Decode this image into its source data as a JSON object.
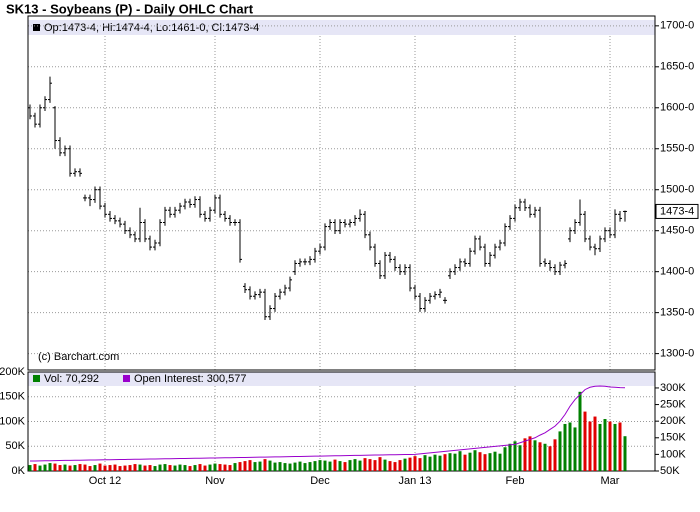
{
  "chart_data": [
    {
      "type": "ohlc",
      "title": "SK13 - Soybeans (P) - Daily OHLC Chart",
      "legend": "Op:1473-4, Hi:1474-4, Lo:1461-0, Cl:1473-4",
      "credit": "(c) Barchart.com",
      "color": "#000000",
      "categories": [
        null,
        null,
        null,
        null,
        null,
        null,
        null,
        null,
        null,
        null,
        null,
        null,
        null,
        null,
        null,
        "Oct 12",
        null,
        null,
        null,
        null,
        null,
        null,
        null,
        null,
        null,
        null,
        null,
        null,
        null,
        null,
        null,
        null,
        null,
        null,
        null,
        null,
        null,
        "Nov",
        null,
        null,
        null,
        null,
        null,
        null,
        null,
        null,
        null,
        null,
        null,
        null,
        null,
        null,
        null,
        null,
        null,
        null,
        null,
        null,
        "Dec",
        null,
        null,
        null,
        null,
        null,
        null,
        null,
        null,
        null,
        null,
        null,
        null,
        null,
        null,
        null,
        null,
        null,
        null,
        "Jan 13",
        null,
        null,
        null,
        null,
        null,
        null,
        null,
        null,
        null,
        null,
        null,
        null,
        null,
        null,
        null,
        null,
        null,
        null,
        null,
        "Feb",
        null,
        null,
        null,
        null,
        null,
        null,
        null,
        null,
        null,
        null,
        null,
        null,
        null,
        null,
        null,
        null,
        null,
        null,
        "Mar",
        null,
        null,
        null
      ],
      "ohlc": [
        [
          1600,
          1604,
          1586,
          1590
        ],
        [
          1590,
          1594,
          1576,
          1580
        ],
        [
          1580,
          1604,
          1576,
          1600
        ],
        [
          1600,
          1614,
          1596,
          1610
        ],
        [
          1610,
          1638,
          1606,
          1630
        ],
        [
          1600,
          1602,
          1550,
          1560
        ],
        [
          1560,
          1564,
          1541,
          1545
        ],
        [
          1545,
          1554,
          1541,
          1550
        ],
        [
          1550,
          1554,
          1516,
          1520
        ],
        [
          1520,
          1526,
          1516,
          1522
        ],
        [
          1522,
          1526,
          1516,
          1520
        ],
        [
          1490,
          1494,
          1486,
          1490
        ],
        [
          1490,
          1494,
          1480,
          1488
        ],
        [
          1488,
          1504,
          1484,
          1500
        ],
        [
          1500,
          1504,
          1476,
          1480
        ],
        [
          1480,
          1484,
          1466,
          1470
        ],
        [
          1470,
          1474,
          1461,
          1465
        ],
        [
          1465,
          1469,
          1458,
          1462
        ],
        [
          1462,
          1466,
          1454,
          1458
        ],
        [
          1458,
          1462,
          1446,
          1450
        ],
        [
          1450,
          1454,
          1441,
          1445
        ],
        [
          1445,
          1449,
          1436,
          1440
        ],
        [
          1440,
          1478,
          1436,
          1460
        ],
        [
          1460,
          1464,
          1436,
          1440
        ],
        [
          1440,
          1444,
          1426,
          1430
        ],
        [
          1430,
          1439,
          1426,
          1435
        ],
        [
          1435,
          1464,
          1431,
          1460
        ],
        [
          1460,
          1479,
          1456,
          1475
        ],
        [
          1475,
          1479,
          1466,
          1470
        ],
        [
          1470,
          1479,
          1466,
          1475
        ],
        [
          1475,
          1484,
          1471,
          1480
        ],
        [
          1480,
          1489,
          1476,
          1485
        ],
        [
          1485,
          1489,
          1478,
          1482
        ],
        [
          1482,
          1492,
          1478,
          1488
        ],
        [
          1488,
          1492,
          1466,
          1470
        ],
        [
          1470,
          1474,
          1461,
          1465
        ],
        [
          1465,
          1479,
          1461,
          1475
        ],
        [
          1475,
          1494,
          1471,
          1490
        ],
        [
          1490,
          1494,
          1466,
          1470
        ],
        [
          1470,
          1474,
          1461,
          1465
        ],
        [
          1465,
          1469,
          1456,
          1460
        ],
        [
          1460,
          1464,
          1456,
          1460
        ],
        [
          1460,
          1464,
          1411,
          1415
        ],
        [
          1382,
          1386,
          1374,
          1378
        ],
        [
          1378,
          1382,
          1366,
          1370
        ],
        [
          1370,
          1376,
          1366,
          1372
        ],
        [
          1372,
          1379,
          1368,
          1375
        ],
        [
          1375,
          1379,
          1341,
          1345
        ],
        [
          1345,
          1359,
          1341,
          1355
        ],
        [
          1355,
          1374,
          1351,
          1370
        ],
        [
          1370,
          1379,
          1366,
          1375
        ],
        [
          1375,
          1384,
          1371,
          1380
        ],
        [
          1380,
          1394,
          1376,
          1390
        ],
        [
          1400,
          1414,
          1396,
          1410
        ],
        [
          1410,
          1416,
          1406,
          1412
        ],
        [
          1412,
          1416,
          1408,
          1412
        ],
        [
          1412,
          1419,
          1408,
          1415
        ],
        [
          1415,
          1429,
          1411,
          1425
        ],
        [
          1425,
          1434,
          1421,
          1430
        ],
        [
          1430,
          1459,
          1426,
          1455
        ],
        [
          1455,
          1464,
          1451,
          1460
        ],
        [
          1460,
          1464,
          1446,
          1450
        ],
        [
          1450,
          1464,
          1446,
          1460
        ],
        [
          1460,
          1464,
          1454,
          1458
        ],
        [
          1458,
          1464,
          1454,
          1460
        ],
        [
          1460,
          1469,
          1456,
          1465
        ],
        [
          1465,
          1476,
          1461,
          1470
        ],
        [
          1470,
          1474,
          1441,
          1445
        ],
        [
          1445,
          1449,
          1426,
          1430
        ],
        [
          1430,
          1434,
          1406,
          1410
        ],
        [
          1410,
          1414,
          1391,
          1395
        ],
        [
          1395,
          1424,
          1391,
          1420
        ],
        [
          1420,
          1424,
          1411,
          1415
        ],
        [
          1415,
          1419,
          1401,
          1405
        ],
        [
          1405,
          1409,
          1396,
          1400
        ],
        [
          1400,
          1409,
          1396,
          1405
        ],
        [
          1405,
          1409,
          1376,
          1380
        ],
        [
          1380,
          1384,
          1366,
          1370
        ],
        [
          1370,
          1374,
          1351,
          1355
        ],
        [
          1355,
          1369,
          1351,
          1365
        ],
        [
          1365,
          1374,
          1361,
          1370
        ],
        [
          1370,
          1376,
          1366,
          1372
        ],
        [
          1372,
          1379,
          1368,
          1375
        ],
        [
          1365,
          1369,
          1361,
          1365
        ],
        [
          1395,
          1404,
          1391,
          1400
        ],
        [
          1400,
          1409,
          1396,
          1405
        ],
        [
          1405,
          1416,
          1401,
          1412
        ],
        [
          1412,
          1416,
          1406,
          1410
        ],
        [
          1410,
          1429,
          1406,
          1425
        ],
        [
          1425,
          1444,
          1421,
          1440
        ],
        [
          1440,
          1444,
          1426,
          1430
        ],
        [
          1430,
          1434,
          1406,
          1410
        ],
        [
          1410,
          1424,
          1406,
          1420
        ],
        [
          1420,
          1434,
          1416,
          1430
        ],
        [
          1430,
          1439,
          1426,
          1435
        ],
        [
          1435,
          1459,
          1431,
          1455
        ],
        [
          1455,
          1469,
          1451,
          1465
        ],
        [
          1465,
          1482,
          1461,
          1478
        ],
        [
          1478,
          1489,
          1474,
          1485
        ],
        [
          1485,
          1489,
          1474,
          1478
        ],
        [
          1478,
          1482,
          1466,
          1470
        ],
        [
          1470,
          1479,
          1466,
          1475
        ],
        [
          1475,
          1479,
          1406,
          1410
        ],
        [
          1412,
          1416,
          1406,
          1410
        ],
        [
          1410,
          1414,
          1401,
          1405
        ],
        [
          1405,
          1409,
          1396,
          1400
        ],
        [
          1400,
          1412,
          1396,
          1408
        ],
        [
          1408,
          1414,
          1404,
          1410
        ],
        [
          1440,
          1454,
          1436,
          1450
        ],
        [
          1450,
          1464,
          1446,
          1460
        ],
        [
          1460,
          1488,
          1456,
          1470
        ],
        [
          1470,
          1474,
          1436,
          1440
        ],
        [
          1440,
          1444,
          1426,
          1430
        ],
        [
          1430,
          1434,
          1420,
          1428
        ],
        [
          1428,
          1444,
          1424,
          1440
        ],
        [
          1440,
          1454,
          1436,
          1450
        ],
        [
          1450,
          1454,
          1441,
          1445
        ],
        [
          1445,
          1476,
          1441,
          1470
        ],
        [
          1470,
          1474,
          1461,
          1465
        ],
        [
          1473.5,
          1474.5,
          1461,
          1473.5
        ]
      ],
      "ylim": [
        1280,
        1712
      ],
      "yticks": [
        {
          "value": 1300,
          "label": "1300-0"
        },
        {
          "value": 1350,
          "label": "1350-0"
        },
        {
          "value": 1400,
          "label": "1400-0"
        },
        {
          "value": 1450,
          "label": "1450-0"
        },
        {
          "value": 1500,
          "label": "1500-0"
        },
        {
          "value": 1550,
          "label": "1550-0"
        },
        {
          "value": 1600,
          "label": "1600-0"
        },
        {
          "value": 1650,
          "label": "1650-0"
        },
        {
          "value": 1700,
          "label": "1700-0"
        }
      ],
      "last_price": {
        "value": 1473.5,
        "label": "1473-4"
      },
      "grid": true
    },
    {
      "type": "volume",
      "ylim": [
        0,
        200000
      ],
      "y2lim": [
        50000,
        348000
      ],
      "yticks": [
        {
          "value": 0,
          "label": "0K"
        },
        {
          "value": 50000,
          "label": "50K"
        },
        {
          "value": 100000,
          "label": "100K"
        },
        {
          "value": 150000,
          "label": "150K"
        },
        {
          "value": 200000,
          "label": "200K"
        }
      ],
      "y2ticks": [
        {
          "value": 50000,
          "label": "50K"
        },
        {
          "value": 100000,
          "label": "100K"
        },
        {
          "value": 150000,
          "label": "150K"
        },
        {
          "value": 200000,
          "label": "200K"
        },
        {
          "value": 250000,
          "label": "250K"
        },
        {
          "value": 300000,
          "label": "300K"
        }
      ],
      "series": [
        {
          "name": "Vol: 70,292",
          "color": "#008000",
          "down_color": "#e00000",
          "values": [
            12000,
            14000,
            11000,
            13000,
            16000,
            15000,
            12000,
            13000,
            11000,
            12000,
            14000,
            13000,
            10000,
            12000,
            15000,
            11000,
            12000,
            13000,
            10000,
            11000,
            12000,
            14000,
            13000,
            11000,
            12000,
            10000,
            13000,
            14000,
            12000,
            11000,
            13000,
            12000,
            10000,
            12000,
            14000,
            11000,
            13000,
            15000,
            14000,
            13000,
            12000,
            16000,
            18000,
            20000,
            22000,
            18000,
            19000,
            24000,
            21000,
            17000,
            18000,
            16000,
            15000,
            17000,
            19000,
            16000,
            18000,
            20000,
            22000,
            21000,
            19000,
            23000,
            20000,
            18000,
            22000,
            24000,
            21000,
            26000,
            24000,
            22000,
            28000,
            23000,
            20000,
            18000,
            22000,
            25000,
            27000,
            30000,
            26000,
            32000,
            29000,
            33000,
            31000,
            34000,
            36000,
            35000,
            40000,
            33000,
            37000,
            42000,
            38000,
            34000,
            36000,
            39000,
            35000,
            48000,
            55000,
            60000,
            52000,
            66000,
            70000,
            62000,
            58000,
            55000,
            50000,
            64000,
            80000,
            95000,
            98000,
            88000,
            160000,
            120000,
            100000,
            110000,
            95000,
            105000,
            100000,
            95000,
            98000,
            70292
          ]
        },
        {
          "name": "Open Interest: 300,577",
          "color": "#9900cc",
          "axis": "y2",
          "values": [
            80000,
            80200,
            80500,
            80800,
            81000,
            81300,
            81500,
            81800,
            82000,
            82300,
            82500,
            82800,
            83000,
            83200,
            83500,
            83700,
            84000,
            84200,
            84500,
            84700,
            85000,
            85200,
            85500,
            85700,
            86000,
            86200,
            86500,
            86700,
            87000,
            87200,
            87500,
            87700,
            88000,
            88200,
            88500,
            88700,
            89000,
            89200,
            89500,
            89700,
            90000,
            90300,
            90500,
            90800,
            91000,
            91300,
            91600,
            91900,
            92100,
            92400,
            92700,
            93000,
            93300,
            93500,
            93800,
            94100,
            94400,
            94600,
            94900,
            95200,
            95500,
            95800,
            96000,
            96300,
            96600,
            96900,
            97100,
            97400,
            97700,
            98000,
            98300,
            98500,
            98800,
            99100,
            99400,
            99600,
            99800,
            100000,
            101500,
            103000,
            104500,
            106000,
            107500,
            109000,
            110500,
            112000,
            113500,
            115000,
            116500,
            118000,
            119500,
            121000,
            122500,
            124000,
            125500,
            127000,
            128500,
            130000,
            135000,
            140000,
            145000,
            150000,
            158000,
            165000,
            175000,
            185000,
            200000,
            220000,
            245000,
            265000,
            280000,
            295000,
            302000,
            305000,
            306000,
            305000,
            303000,
            302000,
            301000,
            300577
          ]
        }
      ]
    }
  ]
}
